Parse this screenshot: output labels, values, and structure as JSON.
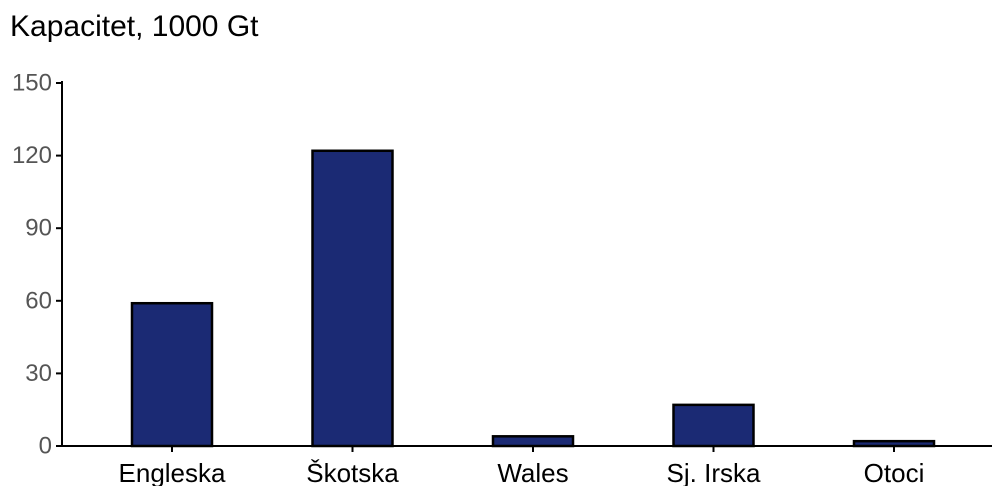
{
  "chart_data": {
    "type": "bar",
    "title": "Kapacitet, 1000 Gt",
    "categories": [
      "Engleska",
      "Škotska",
      "Wales",
      "Sj. Irska",
      "Otoci"
    ],
    "values": [
      59,
      122,
      4,
      17,
      2
    ],
    "ylim": [
      0,
      150
    ],
    "yticks": [
      0,
      30,
      60,
      90,
      120,
      150
    ],
    "grid": false,
    "bar_color": "#1b2a74",
    "bar_edge_color": "#000000"
  }
}
